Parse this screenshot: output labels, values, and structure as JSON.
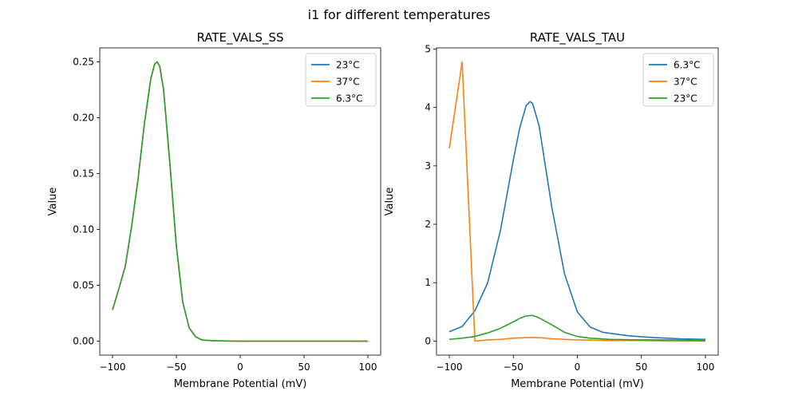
{
  "figure": {
    "suptitle": "i1 for different temperatures"
  },
  "chart_data": [
    {
      "type": "line",
      "title": "RATE_VALS_SS",
      "xlabel": "Membrane Potential (mV)",
      "ylabel": "Value",
      "xlim": [
        -110,
        110
      ],
      "ylim": [
        -0.0125,
        0.2625
      ],
      "xticks": [
        "-100",
        "-50",
        "0",
        "50",
        "100"
      ],
      "yticks": [
        "0.00",
        "0.05",
        "0.10",
        "0.15",
        "0.20",
        "0.25"
      ],
      "legend_position": "top-right",
      "series": [
        {
          "name": "23°C",
          "color": "#1f77b4",
          "x": [
            -100,
            -95,
            -90,
            -85,
            -80,
            -75,
            -70,
            -67,
            -65,
            -63,
            -60,
            -55,
            -50,
            -45,
            -40,
            -35,
            -30,
            -20,
            -10,
            0,
            25,
            50,
            75,
            100
          ],
          "y": [
            0.028,
            0.047,
            0.067,
            0.103,
            0.145,
            0.195,
            0.235,
            0.248,
            0.25,
            0.246,
            0.225,
            0.158,
            0.085,
            0.035,
            0.012,
            0.004,
            0.001,
            0.0003,
            0.0001,
            0.0,
            0.0,
            0.0,
            0.0,
            0.0
          ]
        },
        {
          "name": "37°C",
          "color": "#ff7f0e",
          "x": [
            -100,
            -95,
            -90,
            -85,
            -80,
            -75,
            -70,
            -67,
            -65,
            -63,
            -60,
            -55,
            -50,
            -45,
            -40,
            -35,
            -30,
            -20,
            -10,
            0,
            25,
            50,
            75,
            100
          ],
          "y": [
            0.028,
            0.047,
            0.067,
            0.103,
            0.145,
            0.195,
            0.235,
            0.248,
            0.25,
            0.246,
            0.225,
            0.158,
            0.085,
            0.035,
            0.012,
            0.004,
            0.001,
            0.0003,
            0.0001,
            0.0,
            0.0,
            0.0,
            0.0,
            0.0
          ]
        },
        {
          "name": "6.3°C",
          "color": "#2ca02c",
          "x": [
            -100,
            -95,
            -90,
            -85,
            -80,
            -75,
            -70,
            -67,
            -65,
            -63,
            -60,
            -55,
            -50,
            -45,
            -40,
            -35,
            -30,
            -20,
            -10,
            0,
            25,
            50,
            75,
            100
          ],
          "y": [
            0.028,
            0.047,
            0.067,
            0.103,
            0.145,
            0.195,
            0.235,
            0.248,
            0.25,
            0.246,
            0.225,
            0.158,
            0.085,
            0.035,
            0.012,
            0.004,
            0.001,
            0.0003,
            0.0001,
            0.0,
            0.0,
            0.0,
            0.0,
            0.0
          ]
        }
      ]
    },
    {
      "type": "line",
      "title": "RATE_VALS_TAU",
      "xlabel": "Membrane Potential (mV)",
      "ylabel": "Value",
      "xlim": [
        -110,
        110
      ],
      "ylim": [
        -0.24,
        5.02
      ],
      "xticks": [
        "-100",
        "-50",
        "0",
        "50",
        "100"
      ],
      "yticks": [
        "0",
        "1",
        "2",
        "3",
        "4",
        "5"
      ],
      "legend_position": "top-right",
      "series": [
        {
          "name": "6.3°C",
          "color": "#1f77b4",
          "x": [
            -100,
            -90,
            -80,
            -70,
            -60,
            -50,
            -45,
            -40,
            -37,
            -35,
            -30,
            -25,
            -20,
            -10,
            0,
            10,
            20,
            40,
            60,
            80,
            100
          ],
          "y": [
            0.16,
            0.25,
            0.52,
            1.0,
            1.9,
            3.1,
            3.65,
            4.03,
            4.1,
            4.07,
            3.7,
            3.0,
            2.3,
            1.15,
            0.5,
            0.24,
            0.15,
            0.09,
            0.06,
            0.04,
            0.03
          ]
        },
        {
          "name": "37°C",
          "color": "#ff7f0e",
          "x": [
            -100,
            -90,
            -80,
            -70,
            -60,
            -50,
            -40,
            -30,
            -20,
            -10,
            0,
            25,
            50,
            75,
            100
          ],
          "y": [
            3.3,
            4.78,
            0.0,
            0.02,
            0.03,
            0.05,
            0.06,
            0.06,
            0.04,
            0.03,
            0.02,
            0.01,
            0.01,
            0.0,
            0.0
          ]
        },
        {
          "name": "23°C",
          "color": "#2ca02c",
          "x": [
            -100,
            -90,
            -80,
            -70,
            -60,
            -50,
            -45,
            -40,
            -35,
            -30,
            -20,
            -10,
            0,
            10,
            25,
            50,
            75,
            100
          ],
          "y": [
            0.03,
            0.05,
            0.08,
            0.14,
            0.22,
            0.33,
            0.39,
            0.43,
            0.44,
            0.4,
            0.28,
            0.15,
            0.08,
            0.05,
            0.03,
            0.02,
            0.02,
            0.01
          ]
        }
      ]
    }
  ]
}
